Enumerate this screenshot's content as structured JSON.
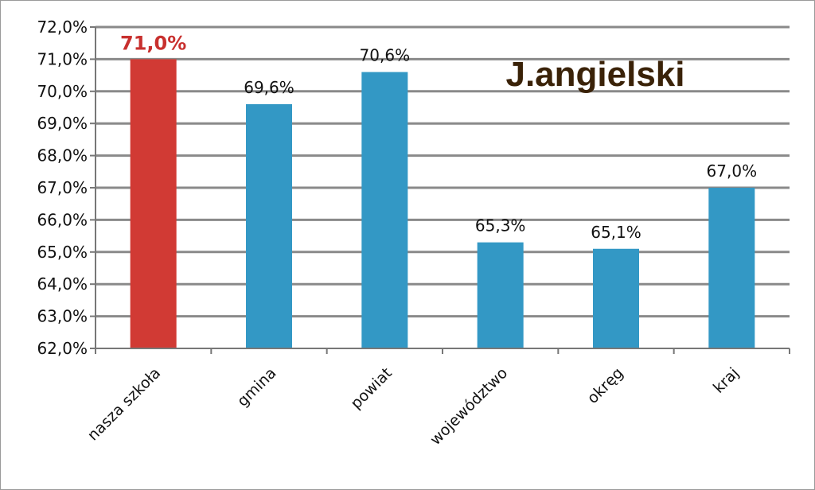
{
  "chart_data": {
    "type": "bar",
    "title": "J.angielski",
    "xlabel": "",
    "ylabel": "",
    "categories": [
      "nasza szkoła",
      "gmina",
      "powiat",
      "województwo",
      "okręg",
      "kraj"
    ],
    "values": [
      71.0,
      69.6,
      70.6,
      65.3,
      65.1,
      67.0
    ],
    "value_labels": [
      "71,0%",
      "69,6%",
      "70,6%",
      "65,3%",
      "65,1%",
      "67,0%"
    ],
    "highlight_index": 0,
    "ylim": [
      62,
      72
    ],
    "yticks": [
      62,
      63,
      64,
      65,
      66,
      67,
      68,
      69,
      70,
      71,
      72
    ],
    "ytick_labels": [
      "62,0%",
      "63,0%",
      "64,0%",
      "65,0%",
      "66,0%",
      "67,0%",
      "68,0%",
      "69,0%",
      "70,0%",
      "71,0%",
      "72,0%"
    ],
    "grid": true,
    "legend": "none",
    "colors": {
      "bar": "#3398c5",
      "highlight": "#d13a34",
      "grid": "#8a8a8a",
      "title": "#3a2208"
    }
  }
}
